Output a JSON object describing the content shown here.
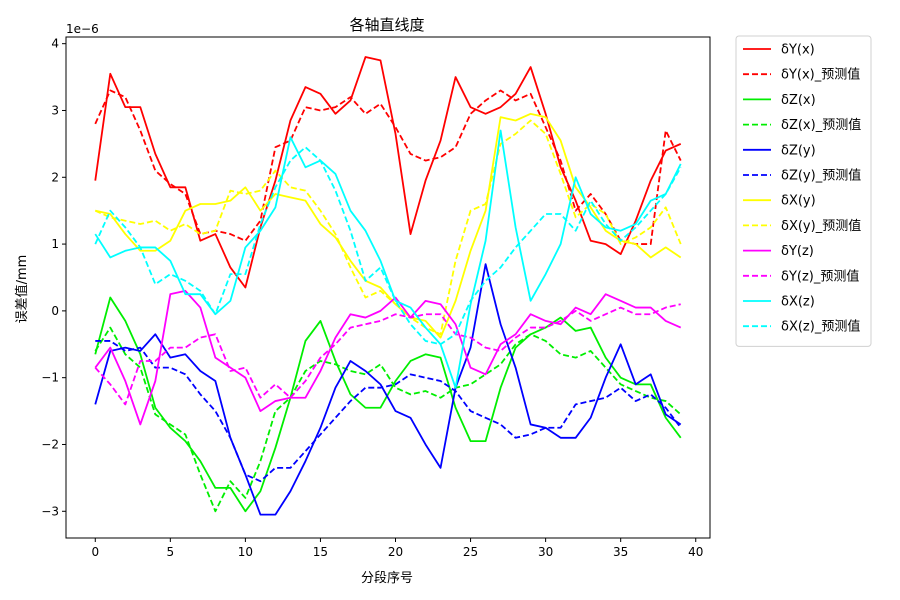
{
  "chart_data": {
    "type": "line",
    "title": "各轴直线度",
    "xlabel": "分段序号",
    "ylabel": "误差值/mm",
    "y_offset_label": "1e−6",
    "xlim": [
      -1.95,
      40.95
    ],
    "ylim": [
      -3.4,
      4.1
    ],
    "xticks": [
      0,
      5,
      10,
      15,
      20,
      25,
      30,
      35,
      40
    ],
    "yticks": [
      -3,
      -2,
      -1,
      0,
      1,
      2,
      3,
      4
    ],
    "y_scale_note": "values in units of 1e-6 mm",
    "legend_position": "outside upper right",
    "x": [
      0,
      1,
      2,
      3,
      4,
      5,
      6,
      7,
      8,
      9,
      10,
      11,
      12,
      13,
      14,
      15,
      16,
      17,
      18,
      19,
      20,
      21,
      22,
      23,
      24,
      25,
      26,
      27,
      28,
      29,
      30,
      31,
      32,
      33,
      34,
      35,
      36,
      37,
      38,
      39
    ],
    "series": [
      {
        "name": "δY(x)",
        "color": "#ff0000",
        "dash": "solid",
        "values": [
          1.95,
          3.55,
          3.05,
          3.05,
          2.35,
          1.85,
          1.85,
          1.05,
          1.15,
          0.65,
          0.35,
          1.25,
          1.95,
          2.85,
          3.35,
          3.25,
          2.95,
          3.15,
          3.8,
          3.75,
          2.65,
          1.15,
          1.95,
          2.55,
          3.5,
          3.05,
          2.95,
          3.05,
          3.25,
          3.65,
          2.95,
          2.15,
          1.65,
          1.05,
          1.0,
          0.85,
          1.35,
          1.95,
          2.4,
          2.5
        ]
      },
      {
        "name": "δY(x)_预测值",
        "color": "#ff0000",
        "dash": "dashed",
        "values": [
          2.8,
          3.3,
          3.2,
          2.7,
          2.1,
          1.9,
          1.75,
          1.15,
          1.2,
          1.15,
          1.05,
          1.35,
          2.45,
          2.55,
          3.05,
          3.0,
          3.05,
          3.2,
          2.95,
          3.1,
          2.75,
          2.35,
          2.25,
          2.3,
          2.45,
          2.95,
          3.15,
          3.3,
          3.15,
          3.25,
          2.75,
          2.25,
          1.5,
          1.75,
          1.45,
          1.05,
          1.0,
          1.0,
          2.7,
          2.25
        ]
      },
      {
        "name": "δZ(x)",
        "color": "#00ee00",
        "dash": "solid",
        "values": [
          -0.65,
          0.2,
          -0.15,
          -0.65,
          -1.45,
          -1.75,
          -1.95,
          -2.25,
          -2.65,
          -2.65,
          -3.0,
          -2.7,
          -2.05,
          -1.3,
          -0.45,
          -0.15,
          -0.75,
          -1.25,
          -1.45,
          -1.45,
          -1.05,
          -0.75,
          -0.65,
          -0.7,
          -1.45,
          -1.95,
          -1.95,
          -1.15,
          -0.55,
          -0.35,
          -0.25,
          -0.1,
          -0.3,
          -0.25,
          -0.7,
          -1.0,
          -1.1,
          -1.1,
          -1.6,
          -1.9
        ]
      },
      {
        "name": "δZ(x)_预测值",
        "color": "#00ee00",
        "dash": "dashed",
        "values": [
          -0.6,
          -0.25,
          -0.65,
          -0.85,
          -1.55,
          -1.7,
          -1.85,
          -2.45,
          -3.0,
          -2.55,
          -2.8,
          -2.25,
          -1.5,
          -1.3,
          -0.9,
          -0.75,
          -0.8,
          -0.9,
          -0.95,
          -0.8,
          -1.15,
          -1.25,
          -1.2,
          -1.3,
          -1.15,
          -1.1,
          -0.95,
          -0.8,
          -0.5,
          -0.35,
          -0.45,
          -0.65,
          -0.7,
          -0.6,
          -0.85,
          -1.1,
          -1.2,
          -1.3,
          -1.35,
          -1.55
        ]
      },
      {
        "name": "δZ(y)",
        "color": "#0000ff",
        "dash": "solid",
        "values": [
          -1.4,
          -0.6,
          -0.55,
          -0.6,
          -0.35,
          -0.7,
          -0.65,
          -0.9,
          -1.05,
          -1.9,
          -2.45,
          -3.05,
          -3.05,
          -2.7,
          -2.25,
          -1.75,
          -1.15,
          -0.75,
          -0.9,
          -1.1,
          -1.5,
          -1.6,
          -2.0,
          -2.35,
          -1.15,
          -0.55,
          0.7,
          -0.2,
          -0.85,
          -1.7,
          -1.75,
          -1.9,
          -1.9,
          -1.6,
          -1.0,
          -0.5,
          -1.1,
          -0.95,
          -1.55,
          -1.7
        ]
      },
      {
        "name": "δZ(y)_预测值",
        "color": "#0000ff",
        "dash": "dashed",
        "values": [
          -0.45,
          -0.45,
          -0.6,
          -0.55,
          -0.85,
          -0.85,
          -0.95,
          -1.25,
          -1.5,
          -1.9,
          -2.45,
          -2.55,
          -2.35,
          -2.35,
          -2.1,
          -1.85,
          -1.6,
          -1.35,
          -1.15,
          -1.15,
          -1.1,
          -0.95,
          -1.0,
          -1.05,
          -1.2,
          -1.5,
          -1.6,
          -1.7,
          -1.9,
          -1.85,
          -1.75,
          -1.75,
          -1.4,
          -1.35,
          -1.3,
          -1.15,
          -1.35,
          -1.25,
          -1.45,
          -1.75
        ]
      },
      {
        "name": "δX(y)",
        "color": "#ffff00",
        "dash": "solid",
        "values": [
          1.5,
          1.45,
          1.15,
          0.9,
          0.9,
          1.05,
          1.5,
          1.6,
          1.6,
          1.65,
          1.85,
          1.5,
          1.75,
          1.7,
          1.65,
          1.3,
          1.1,
          0.75,
          0.45,
          0.35,
          0.1,
          -0.1,
          -0.15,
          -0.4,
          0.15,
          0.9,
          1.5,
          2.9,
          2.85,
          2.95,
          2.9,
          2.55,
          1.85,
          1.55,
          1.2,
          1.05,
          1.0,
          0.8,
          0.95,
          0.8
        ]
      },
      {
        "name": "δX(y)_预测值",
        "color": "#ffff00",
        "dash": "dashed",
        "values": [
          1.5,
          1.4,
          1.35,
          1.3,
          1.35,
          1.2,
          1.3,
          1.15,
          1.2,
          1.8,
          1.75,
          1.8,
          2.1,
          1.85,
          1.8,
          1.5,
          1.15,
          0.65,
          0.2,
          0.3,
          0.1,
          -0.1,
          -0.25,
          -0.35,
          0.75,
          1.5,
          1.6,
          2.5,
          2.65,
          2.85,
          2.65,
          2.05,
          1.4,
          1.6,
          1.45,
          1.0,
          1.1,
          1.25,
          1.55,
          1.0
        ]
      },
      {
        "name": "δY(z)",
        "color": "#ff00ff",
        "dash": "solid",
        "values": [
          -0.85,
          -0.55,
          -1.05,
          -1.7,
          -1.05,
          0.25,
          0.3,
          0.05,
          -0.7,
          -0.85,
          -1.0,
          -1.5,
          -1.35,
          -1.3,
          -1.3,
          -0.9,
          -0.4,
          -0.05,
          -0.1,
          0.0,
          0.2,
          -0.1,
          0.15,
          0.1,
          -0.2,
          -0.85,
          -0.95,
          -0.5,
          -0.35,
          -0.05,
          -0.15,
          -0.2,
          0.05,
          -0.05,
          0.25,
          0.15,
          0.05,
          0.05,
          -0.15,
          -0.25
        ]
      },
      {
        "name": "δY(z)_预测值",
        "color": "#ff00ff",
        "dash": "dashed",
        "values": [
          -0.85,
          -1.1,
          -1.4,
          -0.75,
          -0.75,
          -0.55,
          -0.55,
          -0.4,
          -0.35,
          -0.9,
          -0.85,
          -1.3,
          -1.1,
          -1.3,
          -1.05,
          -0.7,
          -0.5,
          -0.25,
          -0.2,
          -0.15,
          -0.05,
          -0.1,
          -0.05,
          -0.05,
          -0.35,
          -0.4,
          -0.55,
          -0.6,
          -0.4,
          -0.25,
          -0.25,
          -0.15,
          0.0,
          -0.15,
          -0.05,
          0.05,
          -0.05,
          -0.05,
          0.05,
          0.1
        ]
      },
      {
        "name": "δX(z)",
        "color": "#00ffff",
        "dash": "solid",
        "values": [
          1.15,
          0.8,
          0.9,
          0.95,
          0.95,
          0.75,
          0.25,
          0.25,
          -0.05,
          0.15,
          0.95,
          1.2,
          1.55,
          2.6,
          2.15,
          2.25,
          2.05,
          1.5,
          1.2,
          0.75,
          0.15,
          0.05,
          -0.25,
          -0.5,
          -1.15,
          0.1,
          1.05,
          2.7,
          1.25,
          0.15,
          0.55,
          1.0,
          2.0,
          1.45,
          1.25,
          1.2,
          1.3,
          1.65,
          1.75,
          2.2
        ]
      },
      {
        "name": "δX(z)_预测值",
        "color": "#00ffff",
        "dash": "dashed",
        "values": [
          1.0,
          1.5,
          1.25,
          0.95,
          0.4,
          0.55,
          0.45,
          0.3,
          -0.05,
          0.55,
          0.55,
          1.3,
          1.85,
          2.25,
          2.45,
          2.25,
          1.8,
          1.2,
          0.45,
          0.65,
          0.15,
          -0.2,
          -0.45,
          -0.5,
          -0.35,
          0.15,
          0.45,
          0.65,
          0.95,
          1.2,
          1.45,
          1.45,
          1.2,
          1.65,
          1.3,
          1.05,
          1.25,
          1.5,
          1.75,
          2.15
        ]
      }
    ]
  }
}
